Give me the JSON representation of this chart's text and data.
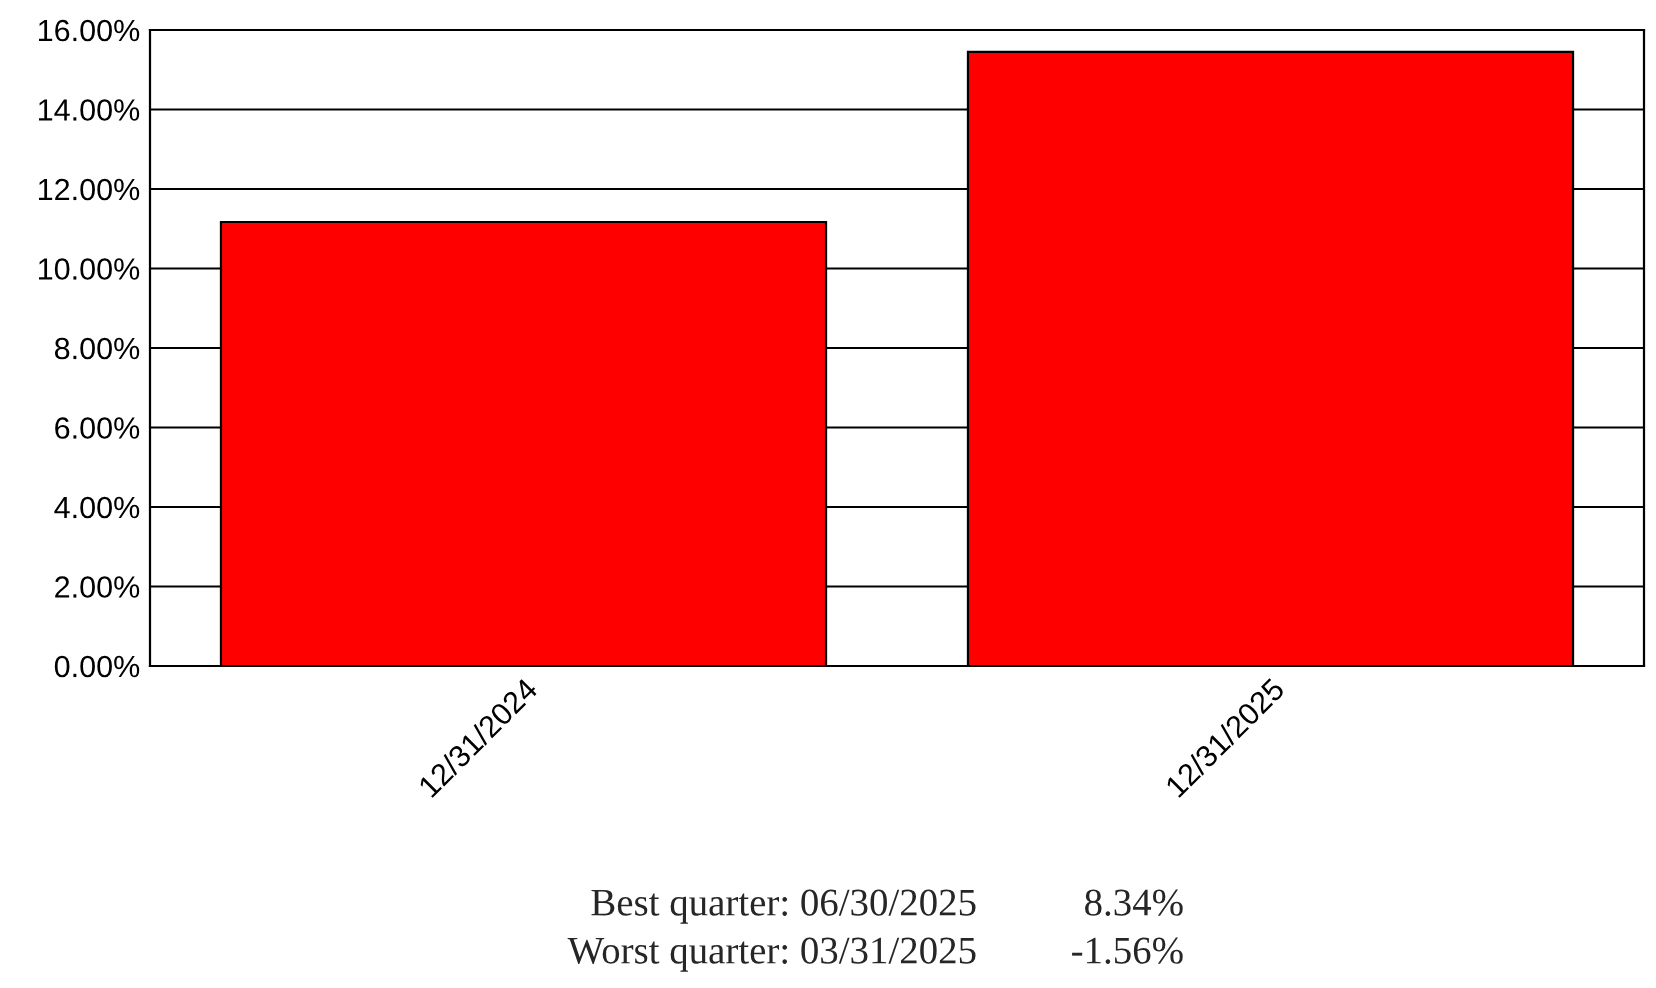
{
  "chart_data": {
    "type": "bar",
    "categories": [
      "12/31/2024",
      "12/31/2025"
    ],
    "values": [
      11.17,
      15.45
    ],
    "color": "#ff0000",
    "ylim": [
      0,
      16
    ],
    "yticks": [
      {
        "value": 0,
        "label": "0.00%"
      },
      {
        "value": 2,
        "label": "2.00%"
      },
      {
        "value": 4,
        "label": "4.00%"
      },
      {
        "value": 6,
        "label": "6.00%"
      },
      {
        "value": 8,
        "label": "8.00%"
      },
      {
        "value": 10,
        "label": "10.00%"
      },
      {
        "value": 12,
        "label": "12.00%"
      },
      {
        "value": 14,
        "label": "14.00%"
      },
      {
        "value": 16,
        "label": "16.00%"
      }
    ],
    "grid": "y",
    "annotations": [
      "Best quarter: 06/30/2025",
      "8.34%",
      "Worst quarter: 03/31/2025",
      "-1.56%"
    ]
  }
}
